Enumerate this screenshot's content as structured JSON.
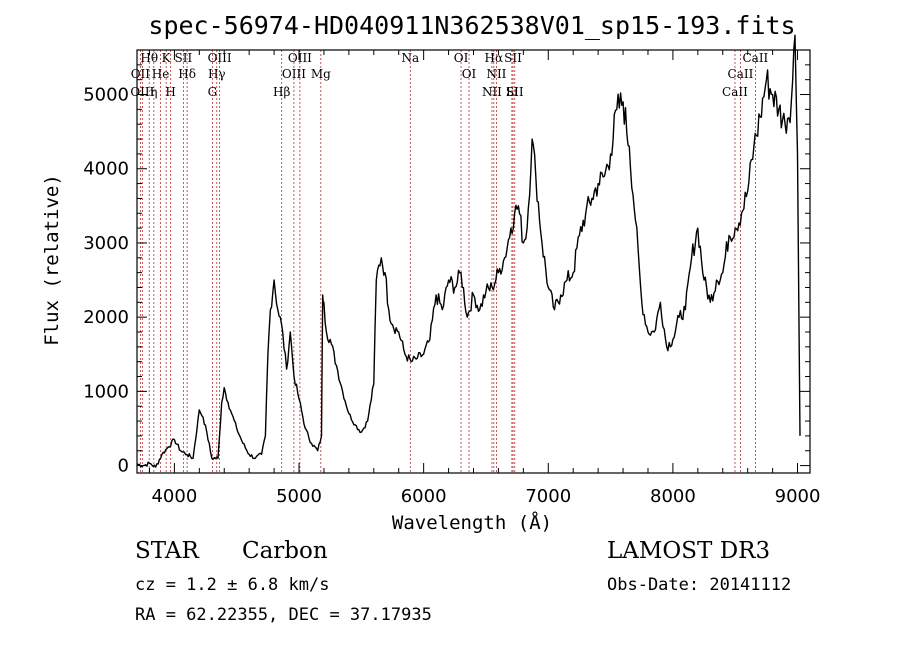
{
  "chart_data": {
    "type": "line",
    "title": "spec-56974-HD040911N362538V01_sp15-193.fits",
    "xlabel": "Wavelength (Å)",
    "ylabel": "Flux (relative)",
    "xlim": [
      3700,
      9100
    ],
    "ylim": [
      -100,
      5600
    ],
    "x_ticks": [
      4000,
      5000,
      6000,
      7000,
      8000,
      9000
    ],
    "x_tick_labels": [
      "4000",
      "5000",
      "6000",
      "7000",
      "8000",
      "9000"
    ],
    "y_ticks": [
      0,
      1000,
      2000,
      3000,
      4000,
      5000
    ],
    "y_tick_labels": [
      "0",
      "1000",
      "2000",
      "3000",
      "4000",
      "5000"
    ],
    "grid": false,
    "series": [
      {
        "x": [
          3700,
          3750,
          3800,
          3850,
          3900,
          3950,
          4000,
          4050,
          4100,
          4150,
          4200,
          4230,
          4260,
          4300,
          4350,
          4380,
          4400,
          4430,
          4460,
          4500,
          4550,
          4600,
          4650,
          4700,
          4730,
          4750,
          4770,
          4800,
          4830,
          4860,
          4900,
          4930,
          4960,
          5000,
          5050,
          5100,
          5150,
          5180,
          5190,
          5200,
          5220,
          5250,
          5300,
          5350,
          5400,
          5450,
          5500,
          5550,
          5600,
          5620,
          5640,
          5660,
          5690,
          5720,
          5750,
          5800,
          5850,
          5900,
          5950,
          6000,
          6050,
          6100,
          6150,
          6200,
          6250,
          6300,
          6350,
          6400,
          6450,
          6500,
          6550,
          6600,
          6650,
          6700,
          6730,
          6760,
          6800,
          6830,
          6870,
          6900,
          6950,
          7000,
          7050,
          7100,
          7150,
          7200,
          7250,
          7300,
          7350,
          7400,
          7450,
          7500,
          7550,
          7600,
          7650,
          7700,
          7750,
          7800,
          7850,
          7900,
          7950,
          8000,
          8050,
          8100,
          8150,
          8200,
          8250,
          8300,
          8350,
          8400,
          8450,
          8500,
          8550,
          8600,
          8650,
          8700,
          8750,
          8800,
          8850,
          8900,
          8950,
          8980,
          9000,
          9020
        ],
        "y": [
          20,
          0,
          30,
          -20,
          150,
          250,
          350,
          200,
          150,
          100,
          750,
          650,
          450,
          100,
          100,
          850,
          1050,
          850,
          700,
          500,
          300,
          150,
          100,
          150,
          400,
          1500,
          2100,
          2500,
          2100,
          1900,
          1300,
          1800,
          1200,
          900,
          500,
          300,
          200,
          400,
          2300,
          2200,
          1800,
          1700,
          1350,
          1000,
          700,
          550,
          450,
          600,
          1100,
          2500,
          2700,
          2800,
          2600,
          2100,
          1900,
          1800,
          1500,
          1400,
          1450,
          1500,
          1700,
          2300,
          2100,
          2500,
          2400,
          2600,
          2000,
          2300,
          2100,
          2350,
          2400,
          2600,
          2800,
          3200,
          3400,
          3500,
          3000,
          3200,
          4400,
          3900,
          3000,
          2400,
          2100,
          2300,
          2500,
          2600,
          3100,
          3400,
          3600,
          3800,
          3900,
          4200,
          4800,
          4900,
          4300,
          3300,
          2200,
          1800,
          1800,
          2200,
          1600,
          1700,
          2000,
          2100,
          2800,
          3200,
          2500,
          2200,
          2500,
          2600,
          3100,
          3200,
          3400,
          3700,
          4300,
          4700,
          5200,
          5000,
          4800,
          4600,
          4900,
          5800,
          4200,
          400
        ]
      }
    ],
    "line_markers": [
      {
        "label": "Hθ",
        "x": 3798
      },
      {
        "label": "OII",
        "x": 3727
      },
      {
        "label": "OIII",
        "x": 3743
      },
      {
        "label": "K",
        "x": 3934
      },
      {
        "label": "He",
        "x": 3889
      },
      {
        "label": "η",
        "x": 3835
      },
      {
        "label": "SII",
        "x": 4072
      },
      {
        "label": "H",
        "x": 3970
      },
      {
        "label": "Hδ",
        "x": 4102
      },
      {
        "label": "OIII",
        "x": 4363
      },
      {
        "label": "Hγ",
        "x": 4340
      },
      {
        "label": "G",
        "x": 4305
      },
      {
        "label": "OIII",
        "x": 5007
      },
      {
        "label": "OIII",
        "x": 4959
      },
      {
        "label": "Hβ",
        "x": 4861
      },
      {
        "label": "Mg",
        "x": 5175
      },
      {
        "label": "Na",
        "x": 5893
      },
      {
        "label": "OI",
        "x": 6300
      },
      {
        "label": "OI",
        "x": 6364
      },
      {
        "label": "Hα",
        "x": 6563
      },
      {
        "label": "SII",
        "x": 6717
      },
      {
        "label": "NII",
        "x": 6584
      },
      {
        "label": "Li",
        "x": 6708
      },
      {
        "label": "NII",
        "x": 6548
      },
      {
        "label": "SII",
        "x": 6731
      },
      {
        "label": "CaII",
        "x": 8662
      },
      {
        "label": "CaII",
        "x": 8542
      },
      {
        "label": "CaII",
        "x": 8498
      }
    ]
  },
  "info": {
    "class_label": "STAR",
    "subclass": "Carbon",
    "survey": "LAMOST DR3",
    "cz": "cz = 1.2 ± 6.8 km/s",
    "obs_date": "Obs-Date: 20141112",
    "radec": "RA =  62.22355, DEC =  37.17935"
  }
}
